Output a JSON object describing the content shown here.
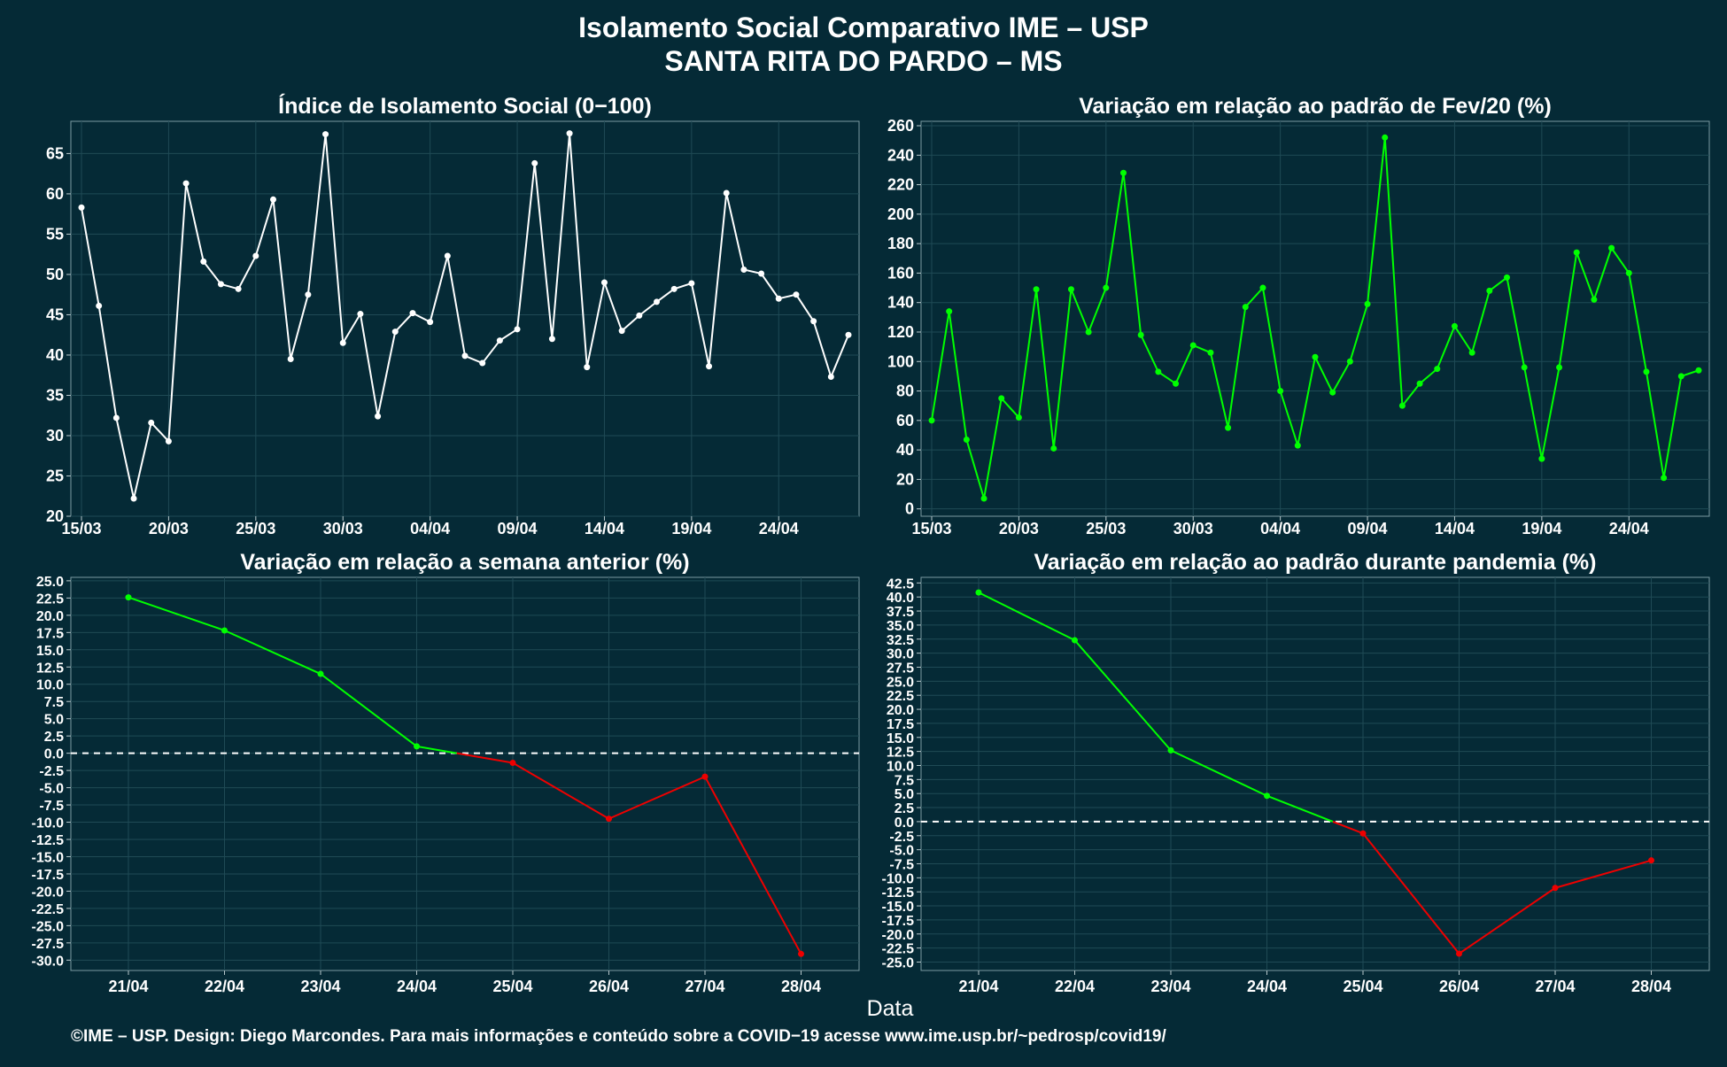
{
  "title": "Isolamento Social Comparativo IME – USP",
  "subtitle": "SANTA RITA DO PARDO – MS",
  "xaxis_label": "Data",
  "footer": "©IME – USP. Design: Diego Marcondes. Para mais informações e conteúdo sobre a COVID−19 acesse www.ime.usp.br/~pedrosp/covid19/",
  "colors": {
    "background": "#052a36",
    "white": "#ffffff",
    "green": "#00ff00",
    "red": "#ee0000",
    "grid": "#1f4a55"
  },
  "chart_data": [
    {
      "type": "line",
      "title": "Índice de Isolamento Social (0−100)",
      "x": [
        "15/03",
        "16/03",
        "17/03",
        "18/03",
        "19/03",
        "20/03",
        "21/03",
        "22/03",
        "23/03",
        "24/03",
        "25/03",
        "26/03",
        "27/03",
        "28/03",
        "29/03",
        "30/03",
        "31/03",
        "01/04",
        "02/04",
        "03/04",
        "04/04",
        "05/04",
        "06/04",
        "07/04",
        "08/04",
        "09/04",
        "10/04",
        "11/04",
        "12/04",
        "13/04",
        "14/04",
        "15/04",
        "16/04",
        "17/04",
        "18/04",
        "19/04",
        "20/04",
        "21/04",
        "22/04",
        "23/04",
        "24/04",
        "25/04",
        "26/04",
        "27/04",
        "28/04"
      ],
      "series": [
        {
          "color": "#ffffff",
          "values": [
            58.3,
            46.1,
            32.2,
            22.2,
            31.6,
            29.3,
            61.3,
            51.6,
            48.8,
            48.2,
            52.3,
            59.3,
            39.5,
            47.5,
            67.4,
            41.5,
            45.1,
            32.4,
            42.9,
            45.2,
            44.1,
            52.3,
            39.9,
            39.0,
            41.8,
            43.2,
            63.8,
            42.0,
            67.5,
            38.5,
            49.0,
            43.0,
            44.9,
            46.6,
            48.2,
            48.9,
            38.6,
            60.1,
            50.6,
            50.1,
            47.0,
            47.5,
            44.2,
            37.3,
            42.5
          ]
        }
      ],
      "xticks": [
        "15/03",
        "20/03",
        "25/03",
        "30/03",
        "04/04",
        "09/04",
        "14/04",
        "19/04",
        "24/04"
      ],
      "yticks": [
        20,
        25,
        30,
        35,
        40,
        45,
        50,
        55,
        60,
        65
      ],
      "ylim": [
        20,
        69
      ],
      "grid": true
    },
    {
      "type": "line",
      "title": "Variação em relação ao padrão de Fev/20 (%)",
      "x": [
        "15/03",
        "16/03",
        "17/03",
        "18/03",
        "19/03",
        "20/03",
        "21/03",
        "22/03",
        "23/03",
        "24/03",
        "25/03",
        "26/03",
        "27/03",
        "28/03",
        "29/03",
        "30/03",
        "31/03",
        "01/04",
        "02/04",
        "03/04",
        "04/04",
        "05/04",
        "06/04",
        "07/04",
        "08/04",
        "09/04",
        "10/04",
        "11/04",
        "12/04",
        "13/04",
        "14/04",
        "15/04",
        "16/04",
        "17/04",
        "18/04",
        "19/04",
        "20/04",
        "21/04",
        "22/04",
        "23/04",
        "24/04",
        "25/04",
        "26/04",
        "27/04",
        "28/04"
      ],
      "series": [
        {
          "color": "#00ff00",
          "values": [
            60,
            134,
            47,
            7,
            75,
            62,
            149,
            41,
            149,
            120,
            150,
            228,
            118,
            93,
            85,
            111,
            106,
            55,
            137,
            150,
            80,
            43,
            103,
            79,
            100,
            139,
            252,
            70,
            85,
            95,
            124,
            106,
            148,
            157,
            96,
            34,
            96,
            174,
            142,
            177,
            160,
            93,
            21,
            90,
            94
          ]
        }
      ],
      "xticks": [
        "15/03",
        "20/03",
        "25/03",
        "30/03",
        "04/04",
        "09/04",
        "14/04",
        "19/04",
        "24/04"
      ],
      "yticks": [
        0,
        20,
        40,
        60,
        80,
        100,
        120,
        140,
        160,
        180,
        200,
        220,
        240,
        260
      ],
      "ylim": [
        -5,
        263
      ],
      "grid": true
    },
    {
      "type": "line",
      "title": "Variação em relação a semana anterior (%)",
      "x": [
        "21/04",
        "22/04",
        "23/04",
        "24/04",
        "25/04",
        "26/04",
        "27/04",
        "28/04"
      ],
      "values": [
        22.6,
        17.8,
        11.5,
        1.0,
        -1.4,
        -9.5,
        -3.4,
        -29.1
      ],
      "yticks": [
        -30,
        -27.5,
        -25,
        -22.5,
        -20,
        -17.5,
        -15,
        -12.5,
        -10,
        -7.5,
        -5,
        -2.5,
        0,
        2.5,
        5,
        7.5,
        10,
        12.5,
        15,
        17.5,
        20,
        22.5,
        25
      ],
      "ylim": [
        -31.5,
        25.5
      ],
      "reference_line": 0,
      "positive_color": "#00ff00",
      "negative_color": "#ee0000",
      "grid": true
    },
    {
      "type": "line",
      "title": "Variação em relação ao padrão durante pandemia (%)",
      "x": [
        "21/04",
        "22/04",
        "23/04",
        "24/04",
        "25/04",
        "26/04",
        "27/04",
        "28/04"
      ],
      "values": [
        40.8,
        32.3,
        12.7,
        4.6,
        -2.1,
        -23.5,
        -11.8,
        -6.9
      ],
      "yticks": [
        -25,
        -22.5,
        -20,
        -17.5,
        -15,
        -12.5,
        -10,
        -7.5,
        -5,
        -2.5,
        0,
        2.5,
        5,
        7.5,
        10,
        12.5,
        15,
        17.5,
        20,
        22.5,
        25,
        27.5,
        30,
        32.5,
        35,
        37.5,
        40,
        42.5
      ],
      "ylim": [
        -26.5,
        43.5
      ],
      "reference_line": 0,
      "positive_color": "#00ff00",
      "negative_color": "#ee0000",
      "grid": true
    }
  ]
}
